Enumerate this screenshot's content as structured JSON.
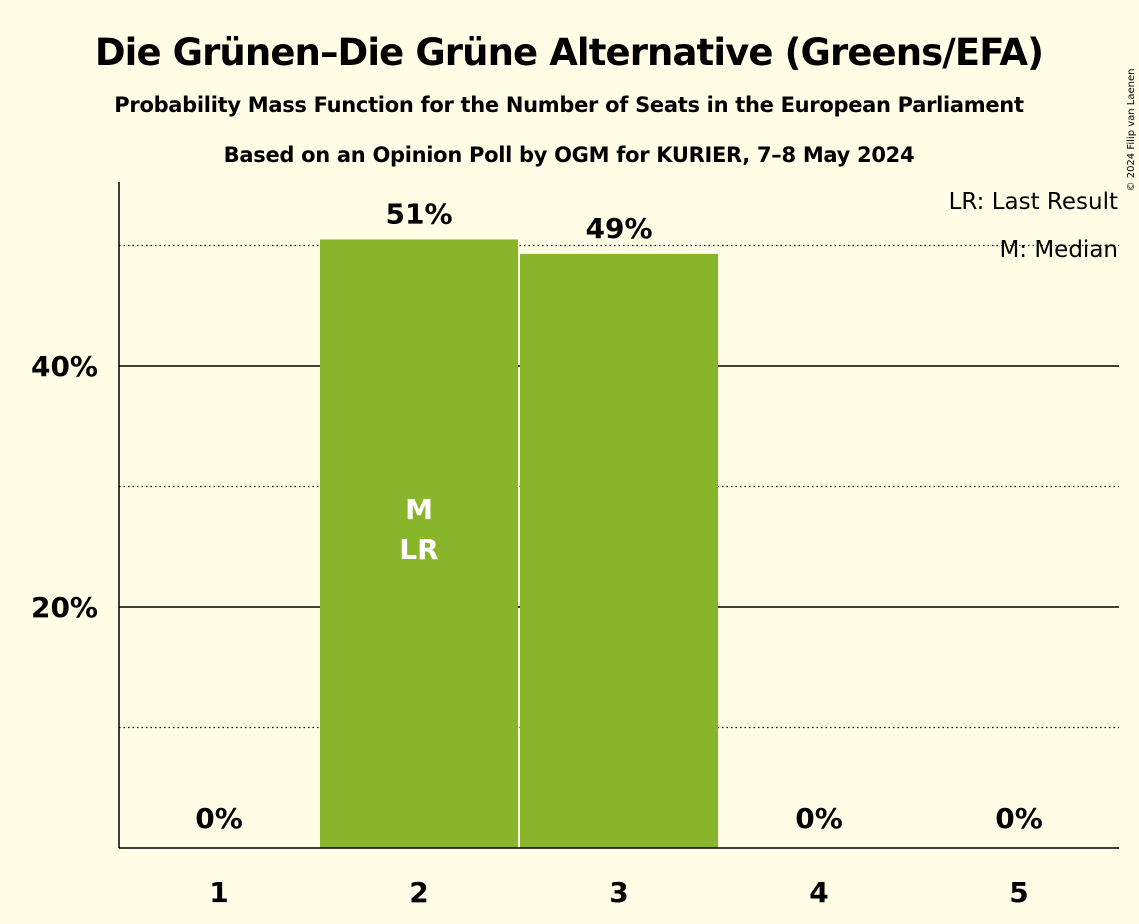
{
  "chart_data": {
    "type": "bar",
    "title": "Die Grünen–Die Grüne Alternative (Greens/EFA)",
    "subtitle_1": "Probability Mass Function for the Number of Seats in the European Parliament",
    "subtitle_2": "Based on an Opinion Poll by OGM for KURIER, 7–8 May 2024",
    "categories": [
      "1",
      "2",
      "3",
      "4",
      "5"
    ],
    "values": [
      0,
      50.5,
      49.3,
      0,
      0
    ],
    "value_labels": [
      "0%",
      "51%",
      "49%",
      "0%",
      "0%"
    ],
    "ylim": [
      0,
      55
    ],
    "major_ticks": [
      20,
      40
    ],
    "major_tick_labels": [
      "20%",
      "40%"
    ],
    "minor_gridlines": [
      10,
      30,
      50
    ],
    "median_category": "2",
    "last_result_category": "2",
    "median_marker": "M",
    "last_result_marker": "LR",
    "legend": {
      "position": "top-right",
      "last_result": "LR: Last Result",
      "median": "M: Median"
    },
    "bar_color": "#88B52A",
    "background_color": "#FFFDE6",
    "copyright": "© 2024 Filip van Laenen"
  }
}
